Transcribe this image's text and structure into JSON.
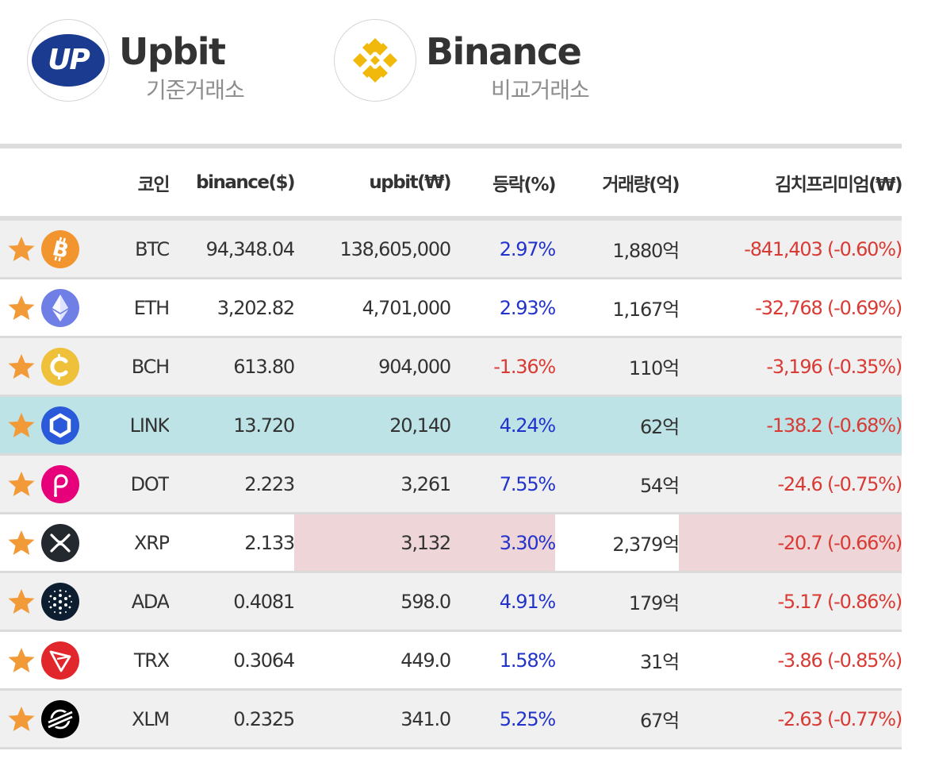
{
  "header": {
    "base_exchange": {
      "name": "Upbit",
      "logo_text": "UP",
      "role": "기준거래소",
      "icon": "upbit-logo-icon",
      "brand_color": "#1b3b91"
    },
    "compare_exchange": {
      "name": "Binance",
      "role": "비교거래소",
      "icon": "binance-logo-icon",
      "brand_color": "#f0b90b"
    }
  },
  "table": {
    "columns": {
      "coin": "코인",
      "binance_price": "binance($)",
      "upbit_price": "upbit(₩)",
      "change": "등락(%)",
      "volume": "거래량(억)",
      "premium": "김치프리미엄(₩)"
    },
    "rows": [
      {
        "symbol": "BTC",
        "icon": "bitcoin-icon",
        "binance": "94,348.04",
        "upbit": "138,605,000",
        "change": "2.97%",
        "volume": "1,880억",
        "premium": "-841,403 (-0.60%)"
      },
      {
        "symbol": "ETH",
        "icon": "ethereum-icon",
        "binance": "3,202.82",
        "upbit": "4,701,000",
        "change": "2.93%",
        "volume": "1,167억",
        "premium": "-32,768 (-0.69%)"
      },
      {
        "symbol": "BCH",
        "icon": "bitcoin-cash-icon",
        "binance": "613.80",
        "upbit": "904,000",
        "change": "-1.36%",
        "volume": "110억",
        "premium": "-3,196 (-0.35%)"
      },
      {
        "symbol": "LINK",
        "icon": "chainlink-icon",
        "binance": "13.720",
        "upbit": "20,140",
        "change": "4.24%",
        "volume": "62억",
        "premium": "-138.2 (-0.68%)"
      },
      {
        "symbol": "DOT",
        "icon": "polkadot-icon",
        "binance": "2.223",
        "upbit": "3,261",
        "change": "7.55%",
        "volume": "54억",
        "premium": "-24.6 (-0.75%)"
      },
      {
        "symbol": "XRP",
        "icon": "xrp-icon",
        "binance": "2.133",
        "upbit": "3,132",
        "change": "3.30%",
        "volume": "2,379억",
        "premium": "-20.7 (-0.66%)"
      },
      {
        "symbol": "ADA",
        "icon": "cardano-icon",
        "binance": "0.4081",
        "upbit": "598.0",
        "change": "4.91%",
        "volume": "179억",
        "premium": "-5.17 (-0.86%)"
      },
      {
        "symbol": "TRX",
        "icon": "tron-icon",
        "binance": "0.3064",
        "upbit": "449.0",
        "change": "1.58%",
        "volume": "31억",
        "premium": "-3.86 (-0.85%)"
      },
      {
        "symbol": "XLM",
        "icon": "stellar-icon",
        "binance": "0.2325",
        "upbit": "341.0",
        "change": "5.25%",
        "volume": "67억",
        "premium": "-2.63 (-0.77%)"
      }
    ]
  },
  "colors": {
    "positive": "#2233cc",
    "negative": "#d93a34",
    "star": "#f29a38",
    "highlight_teal": "#bde3e6",
    "highlight_pink": "#eed5d7"
  }
}
